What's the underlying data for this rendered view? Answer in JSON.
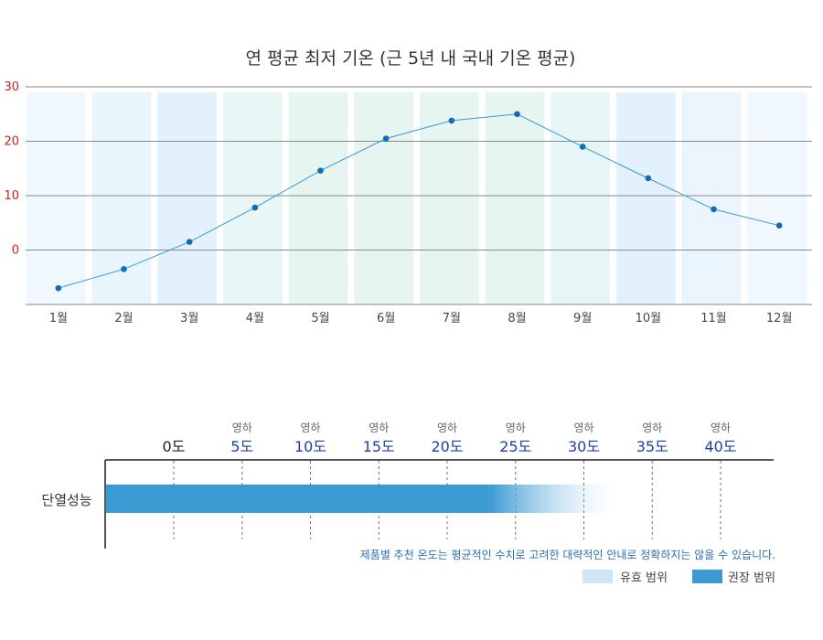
{
  "chart_data": [
    {
      "type": "line",
      "title": "연 평균 최저 기온 (근 5년 내 국내 기온 평균)",
      "categories": [
        "1월",
        "2월",
        "3월",
        "4월",
        "5월",
        "6월",
        "7월",
        "8월",
        "9월",
        "10월",
        "11월",
        "12월"
      ],
      "series": [
        {
          "values": [
            -7,
            -3.5,
            1.5,
            7.8,
            14.6,
            20.5,
            23.8,
            25,
            19,
            13.2,
            7.5,
            4.5
          ]
        }
      ],
      "yticks": [
        "30",
        "20",
        "10",
        "0"
      ],
      "ylim": [
        -10,
        30
      ],
      "grid": true,
      "band_colors": [
        "#f1f8fd",
        "#e9f5fd",
        "#e2f1fc",
        "#e8f6f5",
        "#e6f5ef",
        "#e6f5ef",
        "#e6f5ef",
        "#e6f5ef",
        "#e6f6f6",
        "#e2f1fc",
        "#eaf5fd",
        "#f1f8fd"
      ],
      "line_color": "#3a9ad2",
      "point_color": "#0e6fb8",
      "ytick_color": "#cc1f1f"
    },
    {
      "type": "bar",
      "row_label": "단열성능",
      "scale_labels": [
        {
          "top": "",
          "bottom": "0도",
          "value": 0
        },
        {
          "top": "영하",
          "bottom": "5도",
          "value": -5
        },
        {
          "top": "영하",
          "bottom": "10도",
          "value": -10
        },
        {
          "top": "영하",
          "bottom": "15도",
          "value": -15
        },
        {
          "top": "영하",
          "bottom": "20도",
          "value": -20
        },
        {
          "top": "영하",
          "bottom": "25도",
          "value": -25
        },
        {
          "top": "영하",
          "bottom": "30도",
          "value": -30
        },
        {
          "top": "영하",
          "bottom": "35도",
          "value": -35
        },
        {
          "top": "영하",
          "bottom": "40도",
          "value": -40
        }
      ],
      "recommended_range": [
        0,
        -25
      ],
      "effective_range": [
        -25,
        -33
      ],
      "note": "제품별 추천 온도는 평균적인 수치로 고려한 대략적인 안내로 정확하지는 않을 수 있습니다.",
      "legend": [
        {
          "label": "유효 범위",
          "color": "#cfe6f6"
        },
        {
          "label": "권장 범위",
          "color": "#3a9ad2"
        }
      ]
    }
  ]
}
